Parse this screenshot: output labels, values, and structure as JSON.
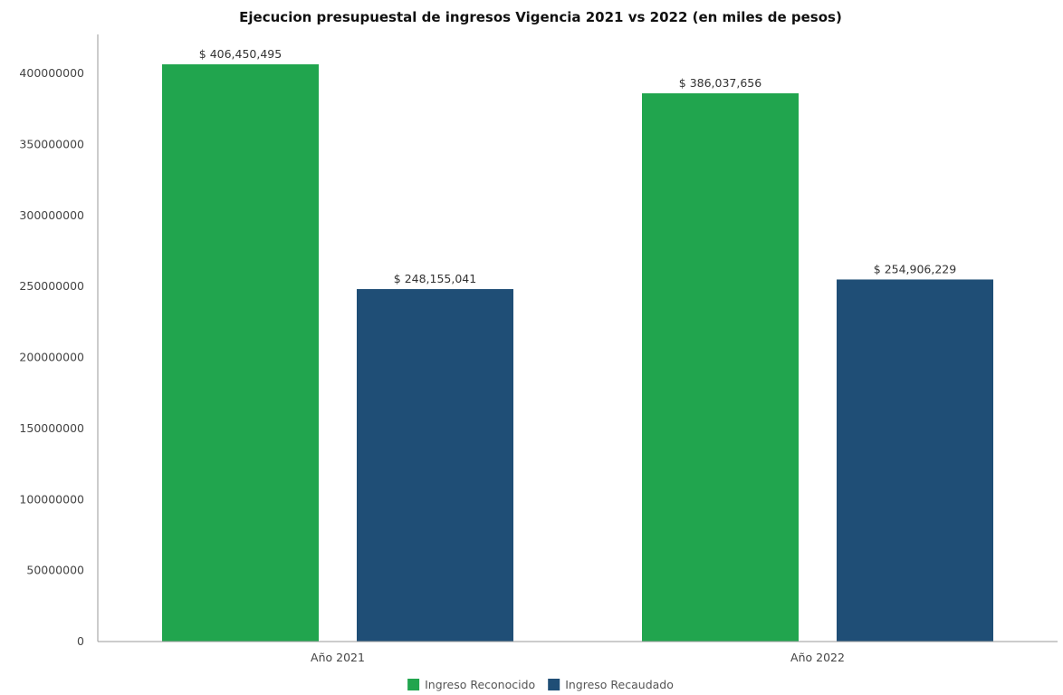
{
  "chart_data": {
    "type": "bar",
    "title": "Ejecucion presupuestal de ingresos Vigencia 2021 vs 2022 (en miles de pesos)",
    "xlabel": "",
    "ylabel": "",
    "categories": [
      "Año 2021",
      "Año 2022"
    ],
    "series": [
      {
        "name": "Ingreso Reconocido",
        "color": "#21a54e",
        "values": [
          406450495,
          386037656
        ],
        "labels": [
          "$ 406,450,495",
          "$ 386,037,656"
        ]
      },
      {
        "name": "Ingreso Recaudado",
        "color": "#1f4e76",
        "values": [
          248155041,
          254906229
        ],
        "labels": [
          "$ 248,155,041",
          "$ 254,906,229"
        ]
      }
    ],
    "ylim": [
      0,
      430000000
    ],
    "yticks": [
      0,
      50000000,
      100000000,
      150000000,
      200000000,
      250000000,
      300000000,
      350000000,
      400000000
    ],
    "ytick_labels": [
      "0",
      "50000000",
      "100000000",
      "150000000",
      "200000000",
      "250000000",
      "300000000",
      "350000000",
      "400000000"
    ],
    "grid": false,
    "legend_position": "bottom"
  }
}
